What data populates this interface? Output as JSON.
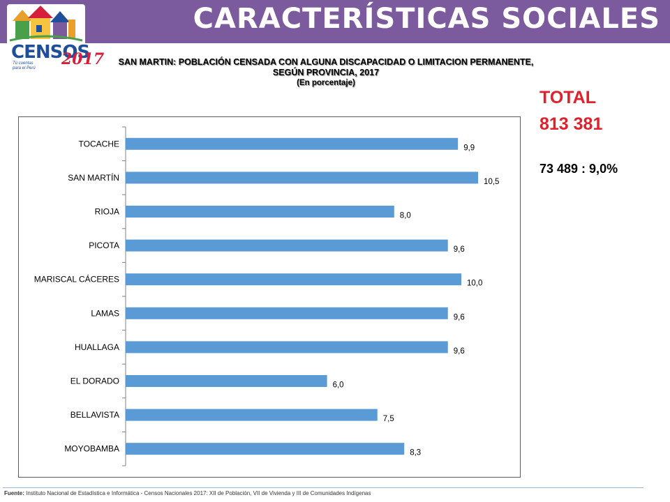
{
  "header": {
    "title": "CARACTERÍSTICAS SOCIALES",
    "accent_color": "#7b5a9e"
  },
  "logo": {
    "text": "CENSOS",
    "year": "2017",
    "tagline": "Tú cuentas para el Perú"
  },
  "totals": {
    "label": "TOTAL",
    "value": "813 381",
    "detail": "73 489 : 9,0%",
    "color": "#e0202a"
  },
  "chart_data": {
    "type": "bar",
    "orientation": "horizontal",
    "title": "SAN MARTIN: POBLACIÓN CENSADA CON ALGUNA DISCAPACIDAD O LIMITACION PERMANENTE,",
    "title_line2": "SEGÚN PROVINCIA, 2017",
    "subtitle": "(En porcentaje)",
    "xlabel": "",
    "ylabel": "",
    "categories": [
      "TOCACHE",
      "SAN MARTÍN",
      "RIOJA",
      "PICOTA",
      "MARISCAL CÁCERES",
      "LAMAS",
      "HUALLAGA",
      "EL DORADO",
      "BELLAVISTA",
      "MOYOBAMBA"
    ],
    "values": [
      9.9,
      10.5,
      8.0,
      9.6,
      10.0,
      9.6,
      9.6,
      6.0,
      7.5,
      8.3
    ],
    "value_labels": [
      "9,9",
      "10,5",
      "8,0",
      "9,6",
      "10,0",
      "9,6",
      "9,6",
      "6,0",
      "7,5",
      "8,3"
    ],
    "xlim": [
      0,
      12
    ],
    "bar_color": "#5b9bd5",
    "grid": false,
    "legend": "none"
  },
  "footer": {
    "label": "Fuente:",
    "text": " Instituto Nacional de Estadística e Informática - Censos Nacionales 2017: XII de Población, VII de Vivienda y III de Comunidades Indígenas"
  }
}
